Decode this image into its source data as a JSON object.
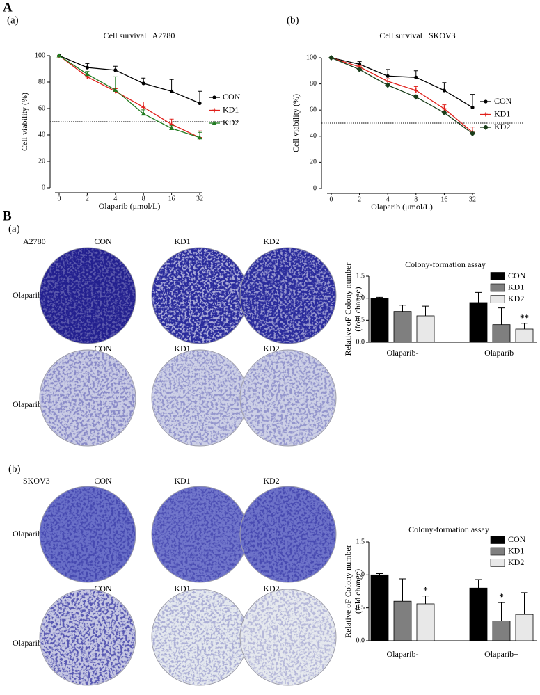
{
  "figure": {
    "panels": [
      "A",
      "B"
    ],
    "sections": [
      {
        "label": "(a)",
        "cell_line": "A2780",
        "columns": [
          "CON",
          "KD1",
          "KD2"
        ],
        "rows": [
          "Olaparib-",
          "Olaparib+"
        ]
      },
      {
        "label": "(b)",
        "cell_line": "SKOV3",
        "columns": [
          "CON",
          "KD1",
          "KD2"
        ],
        "rows": [
          "Olaparib-",
          "Olaparib+"
        ]
      }
    ]
  },
  "chart_data": [
    {
      "type": "line",
      "panel_label": "(a)",
      "title": "Cell survival   A2780",
      "xlabel": "Olaparib (μmol/L)",
      "ylabel": "Cell viability (%)",
      "categories": [
        "0",
        "2",
        "4",
        "8",
        "16",
        "32"
      ],
      "ylim": [
        0,
        100
      ],
      "yticks": [
        0,
        20,
        40,
        60,
        80,
        100
      ],
      "reference_line": 50,
      "series": [
        {
          "name": "CON",
          "color": "#000000",
          "marker": "circle",
          "values": [
            100,
            91,
            89,
            79,
            73,
            64
          ],
          "errors": [
            0,
            3,
            3,
            4,
            9,
            9
          ]
        },
        {
          "name": "KD1",
          "color": "#e0201b",
          "marker": "plus",
          "values": [
            100,
            84,
            73,
            61,
            48,
            38
          ],
          "errors": [
            0,
            1,
            2,
            4,
            4,
            5
          ]
        },
        {
          "name": "KD2",
          "color": "#1f7a1f",
          "marker": "triangle",
          "values": [
            100,
            86,
            74,
            56,
            45,
            38
          ],
          "errors": [
            0,
            2,
            10,
            3,
            2,
            4
          ]
        }
      ]
    },
    {
      "type": "line",
      "panel_label": "(b)",
      "title": "Cell survival   SKOV3",
      "xlabel": "Olaparib (μmol/L)",
      "ylabel": "Cell viability (%)",
      "categories": [
        "0",
        "2",
        "4",
        "8",
        "16",
        "32"
      ],
      "ylim": [
        0,
        100
      ],
      "yticks": [
        0,
        20,
        40,
        60,
        80,
        100
      ],
      "reference_line": 50,
      "series": [
        {
          "name": "CON",
          "color": "#000000",
          "marker": "circle",
          "values": [
            100,
            95,
            86,
            85,
            75,
            62
          ],
          "errors": [
            0,
            2,
            5,
            5,
            6,
            10
          ]
        },
        {
          "name": "KD1",
          "color": "#e0201b",
          "marker": "plus",
          "values": [
            100,
            93,
            82,
            75,
            61,
            43
          ],
          "errors": [
            0,
            1,
            2,
            3,
            3,
            4
          ]
        },
        {
          "name": "KD2",
          "color": "#1a3d1a",
          "marker": "diamond",
          "values": [
            100,
            91,
            79,
            70,
            58,
            42
          ],
          "errors": [
            0,
            1,
            1,
            1,
            1,
            1
          ]
        }
      ]
    },
    {
      "type": "bar",
      "title": "Colony-formation assay",
      "ylabel": [
        "Relative oF Colony number",
        "(fold change)"
      ],
      "categories": [
        "Olaparib-",
        "Olaparib+"
      ],
      "ylim": [
        0,
        1.5
      ],
      "yticks": [
        {
          "value": 0,
          "label": "0.0"
        },
        0.5,
        {
          "value": 1,
          "label": "1.0"
        },
        1.5
      ],
      "series": [
        {
          "name": "CON",
          "color": "#000000",
          "values": [
            1.0,
            0.9
          ],
          "errors": [
            0.02,
            0.23
          ],
          "marks": [
            null,
            null
          ]
        },
        {
          "name": "KD1",
          "color": "#7f7f7f",
          "values": [
            0.7,
            0.4
          ],
          "errors": [
            0.14,
            0.38
          ],
          "marks": [
            null,
            null
          ]
        },
        {
          "name": "KD2",
          "color": "#e8e8e8",
          "values": [
            0.6,
            0.3
          ],
          "errors": [
            0.22,
            0.13
          ],
          "marks": [
            null,
            "**"
          ]
        }
      ]
    },
    {
      "type": "bar",
      "title": "Colony-formation assay",
      "ylabel": [
        "Relative oF Colony number",
        "(fold change)"
      ],
      "categories": [
        "Olaparib-",
        "Olaparib+"
      ],
      "ylim": [
        0,
        1.5
      ],
      "yticks": [
        {
          "value": 0,
          "label": "0.0"
        },
        0.5,
        {
          "value": 1,
          "label": "1.0"
        },
        1.5
      ],
      "series": [
        {
          "name": "CON",
          "color": "#000000",
          "values": [
            1.0,
            0.8
          ],
          "errors": [
            0.02,
            0.13
          ],
          "marks": [
            null,
            null
          ]
        },
        {
          "name": "KD1",
          "color": "#7f7f7f",
          "values": [
            0.6,
            0.3
          ],
          "errors": [
            0.34,
            0.28
          ],
          "marks": [
            null,
            "*"
          ]
        },
        {
          "name": "KD2",
          "color": "#e8e8e8",
          "values": [
            0.56,
            0.4
          ],
          "errors": [
            0.12,
            0.33
          ],
          "marks": [
            "*",
            null
          ]
        }
      ]
    }
  ]
}
